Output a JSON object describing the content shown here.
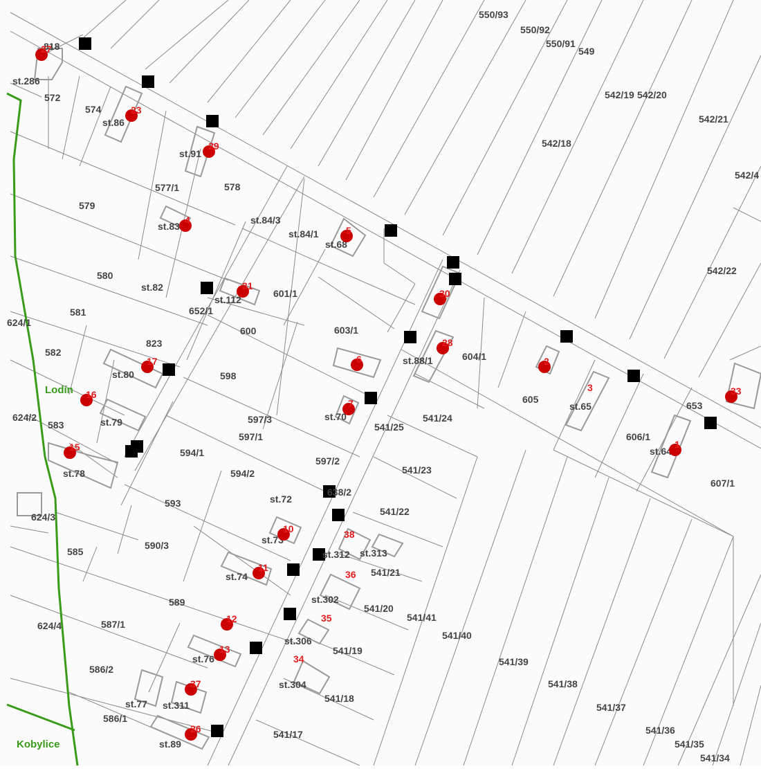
{
  "map": {
    "colors": {
      "background": "#fbfbfb",
      "parcel_line": "#808080",
      "building_outline": "#9a9a9a",
      "boundary": "#3a9a1a",
      "marker": "#cc0000",
      "marker_label": "#e41a1c",
      "survey_point": "#000000",
      "parcel_label": "#444444"
    },
    "place_names": [
      "Lodín",
      "Kobylice"
    ],
    "parcel_labels": [
      "550/93",
      "550/92",
      "550/91",
      "549",
      "542/19",
      "542/20",
      "542/21",
      "542/18",
      "542/4",
      "542/22",
      "818",
      "st.286",
      "572",
      "574",
      "st.86",
      "st.91",
      "577/1",
      "578",
      "579",
      "st.83",
      "st.84/3",
      "st.84/1",
      "st.68",
      "580",
      "st.82",
      "st.112",
      "601/1",
      "652/1",
      "581",
      "624/1",
      "823",
      "600",
      "603/1",
      "604/1",
      "st.88/1",
      "582",
      "st.80",
      "598",
      "605",
      "st.65",
      "653",
      "583",
      "st.79",
      "597/3",
      "541/25",
      "541/24",
      "624/2",
      "597/1",
      "594/1",
      "606/1",
      "st.64",
      "st.78",
      "594/2",
      "597/2",
      "541/23",
      "607/1",
      "st.70",
      "593",
      "st.72",
      "638/2",
      "541/22",
      "624/3",
      "st.73",
      "585",
      "590/3",
      "st.312",
      "st.313",
      "541/21",
      "st.74",
      "st.302",
      "541/20",
      "589",
      "541/41",
      "541/40",
      "624/4",
      "587/1",
      "st.306",
      "541/19",
      "st.76",
      "541/39",
      "586/2",
      "st.304",
      "541/38",
      "541/37",
      "st.77",
      "st.311",
      "541/18",
      "586/1",
      "541/36",
      "541/17",
      "st.89",
      "541/35",
      "541/34"
    ],
    "markers": [
      {
        "num": "27",
        "partial": false
      },
      {
        "num": "23",
        "partial": false
      },
      {
        "num": "29",
        "partial": false
      },
      {
        "num": "4",
        "partial": false
      },
      {
        "num": "5",
        "partial": false
      },
      {
        "num": "31",
        "partial": false
      },
      {
        "num": "30",
        "partial": false
      },
      {
        "num": "28",
        "partial": false
      },
      {
        "num": "6",
        "partial": false
      },
      {
        "num": "17",
        "partial": false
      },
      {
        "num": "16",
        "partial": false
      },
      {
        "num": "2",
        "partial": false
      },
      {
        "num": "3",
        "partial": true
      },
      {
        "num": "33",
        "partial": false
      },
      {
        "num": "7",
        "partial": false
      },
      {
        "num": "15",
        "partial": false
      },
      {
        "num": "1",
        "partial": false
      },
      {
        "num": "10",
        "partial": false
      },
      {
        "num": "38",
        "partial": true
      },
      {
        "num": "11",
        "partial": false
      },
      {
        "num": "36",
        "partial": true
      },
      {
        "num": "12",
        "partial": false
      },
      {
        "num": "35",
        "partial": true
      },
      {
        "num": "13",
        "partial": false
      },
      {
        "num": "34",
        "partial": true
      },
      {
        "num": "37",
        "partial": false
      },
      {
        "num": "26",
        "partial": false
      }
    ]
  }
}
